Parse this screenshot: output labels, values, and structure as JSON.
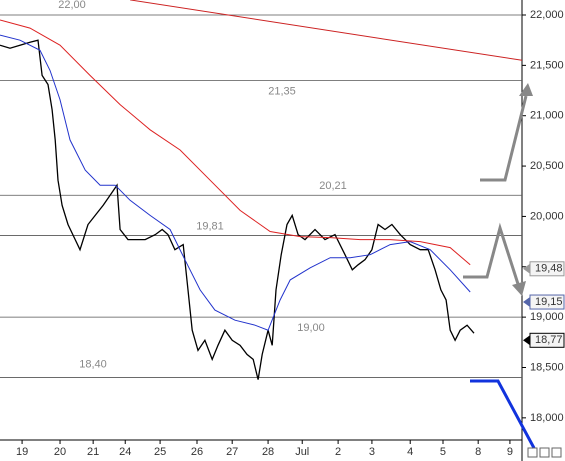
{
  "chart_data": {
    "type": "line",
    "xlim": [
      -0.64,
      14.49
    ],
    "ylim": [
      17.78,
      22.149
    ],
    "xticks": [
      {
        "value": 0,
        "label": "19"
      },
      {
        "value": 1.1,
        "label": "20"
      },
      {
        "value": 2.06,
        "label": "21"
      },
      {
        "value": 2.99,
        "label": "24"
      },
      {
        "value": 4.0,
        "label": "25"
      },
      {
        "value": 5.07,
        "label": "26"
      },
      {
        "value": 6.09,
        "label": "27"
      },
      {
        "value": 7.13,
        "label": "28"
      },
      {
        "value": 8.12,
        "label": "Jul"
      },
      {
        "value": 9.16,
        "label": "2"
      },
      {
        "value": 10.14,
        "label": "3"
      },
      {
        "value": 11.25,
        "label": "4"
      },
      {
        "value": 12.2,
        "label": "5"
      },
      {
        "value": 13.22,
        "label": "8"
      },
      {
        "value": 14.14,
        "label": "9"
      }
    ],
    "yticks": [
      {
        "value": 18,
        "label": "18,000"
      },
      {
        "value": 18.5,
        "label": "18,500"
      },
      {
        "value": 19,
        "label": "19,000"
      },
      {
        "value": 19.5,
        "label": "19,500"
      },
      {
        "value": 20,
        "label": "20,000"
      },
      {
        "value": 20.5,
        "label": "20,500"
      },
      {
        "value": 21,
        "label": "21,000"
      },
      {
        "value": 21.5,
        "label": "21,500"
      },
      {
        "value": 22,
        "label": "22,000"
      }
    ],
    "levels": [
      {
        "value": 22,
        "label": "22,00"
      },
      {
        "value": 21.35,
        "label": "21,35"
      },
      {
        "value": 20.21,
        "label": "20,21"
      },
      {
        "value": 19.81,
        "label": "19,81"
      },
      {
        "value": 19,
        "label": "19,00"
      },
      {
        "value": 18.4,
        "label": "18,40"
      }
    ],
    "price_tags": [
      {
        "value": 19.48,
        "label": "19,48",
        "color": "#999999"
      },
      {
        "value": 19.15,
        "label": "19,15",
        "color": "#5566aa"
      },
      {
        "value": 18.77,
        "label": "18,77",
        "color": "#000000"
      }
    ],
    "series": [
      {
        "color": "#000000",
        "x": [
          -0.64,
          -0.35,
          -0.06,
          0.23,
          0.46,
          0.58,
          0.75,
          0.87,
          0.96,
          1.04,
          1.16,
          1.33,
          1.54,
          1.68,
          1.91,
          2.12,
          2.35,
          2.55,
          2.75,
          2.84,
          3.07,
          3.28,
          3.57,
          3.86,
          4.06,
          4.23,
          4.43,
          4.67,
          4.81,
          4.93,
          5.1,
          5.3,
          5.51,
          5.68,
          5.88,
          6.09,
          6.32,
          6.52,
          6.7,
          6.84,
          6.96,
          7.13,
          7.25,
          7.36,
          7.51,
          7.68,
          7.83,
          8.0,
          8.2,
          8.49,
          8.78,
          9.07,
          9.36,
          9.57,
          9.74,
          9.94,
          10.14,
          10.32,
          10.52,
          10.72,
          10.96,
          11.25,
          11.54,
          11.77,
          11.97,
          12.14,
          12.29,
          12.41,
          12.55,
          12.7,
          12.9,
          13.1
        ],
        "values": [
          21.7,
          21.67,
          21.7,
          21.73,
          21.75,
          21.4,
          21.31,
          21.06,
          20.76,
          20.36,
          20.11,
          19.92,
          19.77,
          19.67,
          19.92,
          20.01,
          20.11,
          20.21,
          20.31,
          19.87,
          19.77,
          19.77,
          19.77,
          19.82,
          19.87,
          19.82,
          19.67,
          19.72,
          19.27,
          18.87,
          18.67,
          18.77,
          18.58,
          18.72,
          18.87,
          18.77,
          18.72,
          18.63,
          18.58,
          18.38,
          18.63,
          18.87,
          18.72,
          19.27,
          19.62,
          19.92,
          20.01,
          19.82,
          19.77,
          19.87,
          19.77,
          19.82,
          19.62,
          19.47,
          19.52,
          19.57,
          19.67,
          19.92,
          19.87,
          19.92,
          19.82,
          19.72,
          19.67,
          19.67,
          19.47,
          19.27,
          19.17,
          18.87,
          18.77,
          18.87,
          18.92,
          18.84
        ]
      },
      {
        "color": "#2233cc",
        "x": [
          -0.64,
          -0.06,
          0.52,
          0.81,
          1.1,
          1.39,
          1.83,
          2.26,
          2.7,
          3.13,
          3.71,
          4.29,
          4.72,
          5.16,
          5.59,
          6.17,
          6.75,
          7.13,
          7.48,
          7.77,
          8.35,
          8.93,
          9.51,
          10.09,
          10.67,
          11.25,
          11.83,
          12.41,
          12.99
        ],
        "values": [
          21.8,
          21.75,
          21.65,
          21.45,
          21.16,
          20.76,
          20.46,
          20.31,
          20.31,
          20.16,
          20.01,
          19.87,
          19.57,
          19.27,
          19.07,
          18.97,
          18.92,
          18.87,
          19.17,
          19.37,
          19.49,
          19.59,
          19.59,
          19.62,
          19.72,
          19.75,
          19.67,
          19.47,
          19.25
        ]
      },
      {
        "color": "#dd2222",
        "x": [
          -0.64,
          0.23,
          1.1,
          1.97,
          2.84,
          3.71,
          4.58,
          5.45,
          6.32,
          7.19,
          8.06,
          8.93,
          9.8,
          10.67,
          11.54,
          12.41,
          12.99
        ],
        "values": [
          21.95,
          21.87,
          21.7,
          21.4,
          21.11,
          20.86,
          20.66,
          20.36,
          20.06,
          19.85,
          19.8,
          19.79,
          19.77,
          19.77,
          19.75,
          19.69,
          19.52
        ]
      },
      {
        "color": "#cc2222",
        "x": [
          3.13,
          14.49
        ],
        "values": [
          22.15,
          21.55
        ]
      }
    ]
  }
}
